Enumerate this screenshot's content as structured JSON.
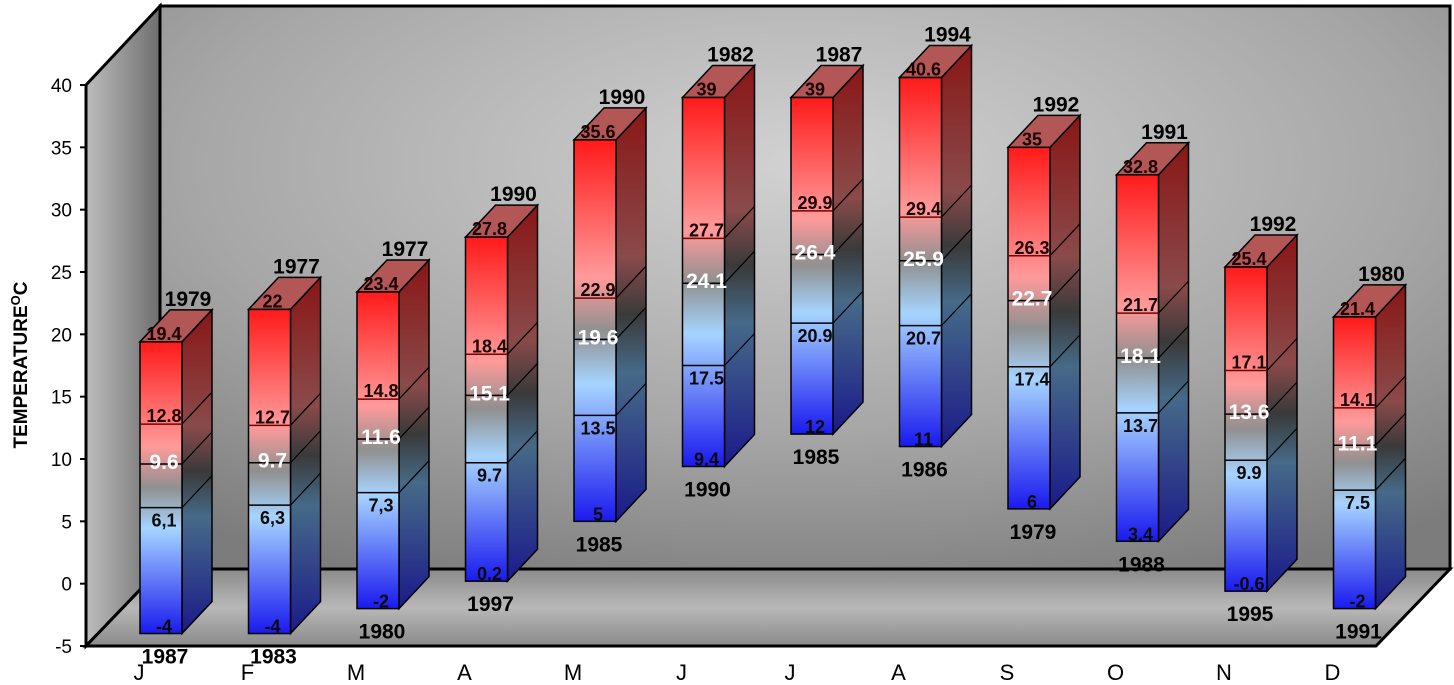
{
  "chart_data": {
    "type": "bar",
    "style": "stacked-3d-columns",
    "ylabel": "TEMPERATURE",
    "ylabel_superscript": "O",
    "ylabel_suffix": "C",
    "ylim": [
      -5,
      40
    ],
    "yticks": [
      "-5",
      "0",
      "5",
      "10",
      "15",
      "20",
      "25",
      "30",
      "35",
      "40"
    ],
    "grid": false,
    "categories": [
      "J",
      "F",
      "M",
      "A",
      "M",
      "J",
      "J",
      "A",
      "S",
      "O",
      "N",
      "D"
    ],
    "columns": [
      {
        "max": 19.4,
        "max_label": "19.4",
        "max_year": "1979",
        "high": 12.8,
        "high_label": "12.8",
        "mean": 9.6,
        "mean_label": "9.6",
        "low": 6.1,
        "low_label": "6,1",
        "min": -4,
        "min_label": "-4",
        "min_year": "1987"
      },
      {
        "max": 22,
        "max_label": "22",
        "max_year": "1977",
        "high": 12.7,
        "high_label": "12.7",
        "mean": 9.7,
        "mean_label": "9.7",
        "low": 6.3,
        "low_label": "6,3",
        "min": -4,
        "min_label": "-4",
        "min_year": "1983"
      },
      {
        "max": 23.4,
        "max_label": "23.4",
        "max_year": "1977",
        "high": 14.8,
        "high_label": "14.8",
        "mean": 11.6,
        "mean_label": "11.6",
        "low": 7.3,
        "low_label": "7,3",
        "min": -2,
        "min_label": "-2",
        "min_year": "1980"
      },
      {
        "max": 27.8,
        "max_label": "27.8",
        "max_year": "1990",
        "high": 18.4,
        "high_label": "18.4",
        "mean": 15.1,
        "mean_label": "15.1",
        "low": 9.7,
        "low_label": "9.7",
        "min": 0.2,
        "min_label": "0.2",
        "min_year": "1997"
      },
      {
        "max": 35.6,
        "max_label": "35.6",
        "max_year": "1990",
        "high": 22.9,
        "high_label": "22.9",
        "mean": 19.6,
        "mean_label": "19.6",
        "low": 13.5,
        "low_label": "13.5",
        "min": 5,
        "min_label": "5",
        "min_year": "1985"
      },
      {
        "max": 39,
        "max_label": "39",
        "max_year": "1982",
        "high": 27.7,
        "high_label": "27.7",
        "mean": 24.1,
        "mean_label": "24.1",
        "low": 17.5,
        "low_label": "17.5",
        "min": 9.4,
        "min_label": "9.4",
        "min_year": "1990"
      },
      {
        "max": 39,
        "max_label": "39",
        "max_year": "1987",
        "high": 29.9,
        "high_label": "29.9",
        "mean": 26.4,
        "mean_label": "26.4",
        "low": 20.9,
        "low_label": "20.9",
        "min": 12,
        "min_label": "12",
        "min_year": "1985"
      },
      {
        "max": 40.6,
        "max_label": "40.6",
        "max_year": "1994",
        "high": 29.4,
        "high_label": "29.4",
        "mean": 25.9,
        "mean_label": "25.9",
        "low": 20.7,
        "low_label": "20.7",
        "min": 11,
        "min_label": "11",
        "min_year": "1986"
      },
      {
        "max": 35,
        "max_label": "35",
        "max_year": "1992",
        "high": 26.3,
        "high_label": "26.3",
        "mean": 22.7,
        "mean_label": "22.7",
        "low": 17.4,
        "low_label": "17.4",
        "min": 6,
        "min_label": "6",
        "min_year": "1979"
      },
      {
        "max": 32.8,
        "max_label": "32.8",
        "max_year": "1991",
        "high": 21.7,
        "high_label": "21.7",
        "mean": 18.1,
        "mean_label": "18.1",
        "low": 13.7,
        "low_label": "13.7",
        "min": 3.4,
        "min_label": "3.4",
        "min_year": "1988"
      },
      {
        "max": 25.4,
        "max_label": "25.4",
        "max_year": "1992",
        "high": 17.1,
        "high_label": "17.1",
        "mean": 13.6,
        "mean_label": "13.6",
        "low": 9.9,
        "low_label": "9.9",
        "min": -0.6,
        "min_label": "-0.6",
        "min_year": "1995"
      },
      {
        "max": 21.4,
        "max_label": "21.4",
        "max_year": "1980",
        "high": 14.1,
        "high_label": "14.1",
        "mean": 11.1,
        "mean_label": "11.1",
        "low": 7.5,
        "low_label": "7.5",
        "min": -2,
        "min_label": "-2",
        "min_year": "1991"
      }
    ]
  }
}
